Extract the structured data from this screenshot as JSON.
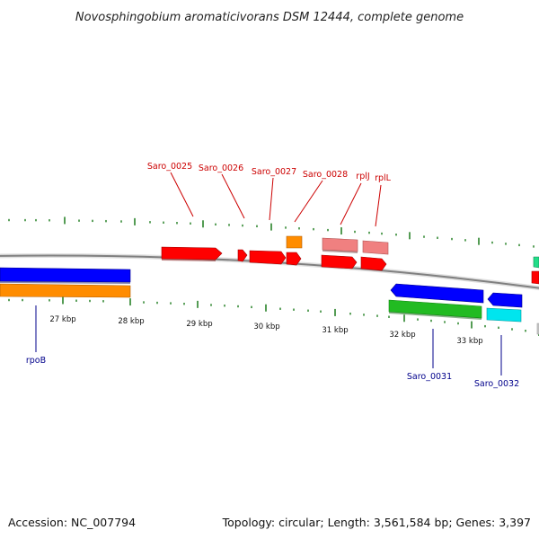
{
  "title": "Novosphingobium aromaticivorans DSM 12444, complete genome",
  "footer": {
    "accession": "Accession: NC_007794",
    "summary": "Topology: circular; Length: 3,561,584 bp; Genes: 3,397"
  },
  "colors": {
    "forward_label": "#cc0000",
    "reverse_label": "#00008b",
    "tick": "#1a7a1a",
    "backbone": "#808080"
  },
  "axis": {
    "tick_labels": [
      "27 kbp",
      "28 kbp",
      "29 kbp",
      "30 kbp",
      "31 kbp",
      "32 kbp",
      "33 kbp"
    ]
  },
  "forward_labels": [
    "Saro_0025",
    "Saro_0026",
    "Saro_0027",
    "Saro_0028",
    "rplJ",
    "rplL"
  ],
  "reverse_labels": [
    "rpoB",
    "Saro_0031",
    "Saro_0032"
  ],
  "legend_colors": {
    "cds_forward": "#ff0000",
    "rna_forward": "#f08080",
    "misc_forward": "#ff8c00",
    "cds_reverse": "#0000ff",
    "rna_reverse": "#22bb22",
    "misc_reverse": "#00e5ee",
    "misc_reverse_2": "#ff8c00"
  }
}
